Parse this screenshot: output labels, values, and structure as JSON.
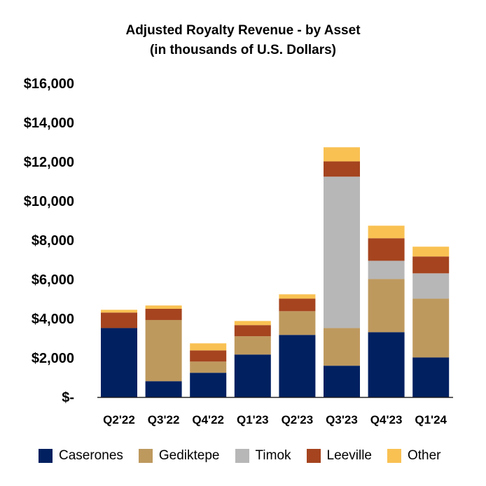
{
  "chart_data": {
    "type": "bar",
    "stacked": true,
    "title": "Adjusted Royalty Revenue - by Asset",
    "subtitle": "(in thousands of U.S. Dollars)",
    "categories": [
      "Q2'22",
      "Q3'22",
      "Q4'22",
      "Q1'23",
      "Q2'23",
      "Q3'23",
      "Q4'23",
      "Q1'24"
    ],
    "series": [
      {
        "name": "Caserones",
        "color": "#002060",
        "values": [
          3520,
          810,
          1240,
          2170,
          3170,
          1600,
          3310,
          2020
        ]
      },
      {
        "name": "Gediktepe",
        "color": "#BE995E",
        "values": [
          0,
          3120,
          570,
          930,
          1210,
          1920,
          2710,
          3000
        ]
      },
      {
        "name": "Timok",
        "color": "#B7B7B7",
        "values": [
          0,
          0,
          0,
          0,
          0,
          7720,
          930,
          1290
        ]
      },
      {
        "name": "Leeville",
        "color": "#A5441F",
        "values": [
          790,
          570,
          570,
          570,
          640,
          780,
          1150,
          860
        ]
      },
      {
        "name": "Other",
        "color": "#F9C152",
        "values": [
          140,
          170,
          360,
          210,
          220,
          720,
          640,
          500
        ]
      }
    ],
    "ylim": [
      0,
      16000
    ],
    "yticks": [
      {
        "value": 0,
        "label": "$-"
      },
      {
        "value": 2000,
        "label": "$2,000"
      },
      {
        "value": 4000,
        "label": "$4,000"
      },
      {
        "value": 6000,
        "label": "$6,000"
      },
      {
        "value": 8000,
        "label": "$8,000"
      },
      {
        "value": 10000,
        "label": "$10,000"
      },
      {
        "value": 12000,
        "label": "$12,000"
      },
      {
        "value": 14000,
        "label": "$14,000"
      },
      {
        "value": 16000,
        "label": "$16,000"
      }
    ],
    "grid": false,
    "legend_position": "bottom"
  }
}
